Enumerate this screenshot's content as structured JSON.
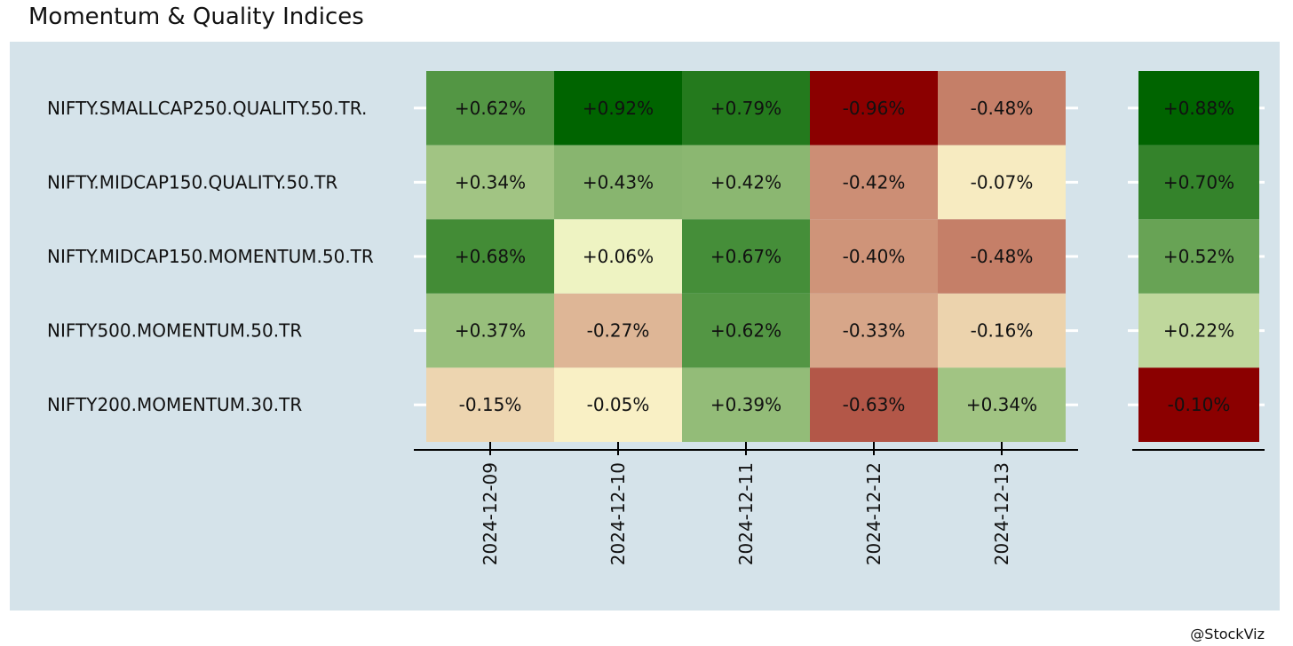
{
  "title": "Momentum & Quality Indices",
  "caption": "@StockViz",
  "chart_data": {
    "type": "heatmap",
    "rows": [
      "NIFTY.SMALLCAP250.QUALITY.50.TR.",
      "NIFTY.MIDCAP150.QUALITY.50.TR",
      "NIFTY.MIDCAP150.MOMENTUM.50.TR",
      "NIFTY500.MOMENTUM.50.TR",
      "NIFTY200.MOMENTUM.30.TR"
    ],
    "columns": [
      "2024-12-09",
      "2024-12-10",
      "2024-12-11",
      "2024-12-12",
      "2024-12-13"
    ],
    "values": [
      [
        0.62,
        0.92,
        0.79,
        -0.96,
        -0.48
      ],
      [
        0.34,
        0.43,
        0.42,
        -0.42,
        -0.07
      ],
      [
        0.68,
        0.06,
        0.67,
        -0.4,
        -0.48
      ],
      [
        0.37,
        -0.27,
        0.62,
        -0.33,
        -0.16
      ],
      [
        -0.15,
        -0.05,
        0.39,
        -0.63,
        0.34
      ]
    ],
    "side_values": [
      0.88,
      0.7,
      0.52,
      0.22,
      -0.1
    ],
    "colors": {
      "negative": "#8b0000",
      "neutral": "#fffdd0",
      "positive": "#006400"
    }
  }
}
